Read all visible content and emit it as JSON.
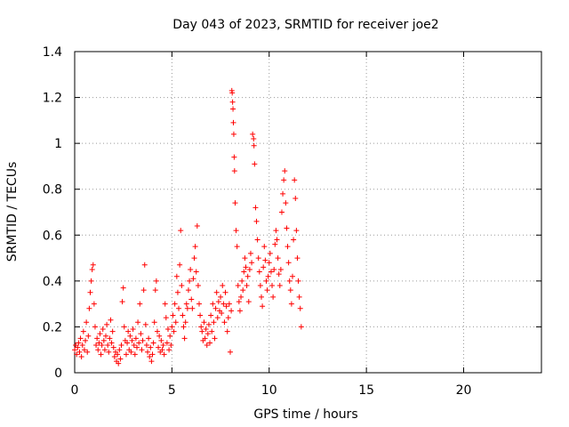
{
  "chart_data": {
    "type": "scatter",
    "title": "Day 043 of 2023, SRMTID for receiver joe2",
    "xlabel": "GPS time / hours",
    "ylabel": "SRMTID / TECUs",
    "xlim": [
      0,
      24
    ],
    "ylim": [
      0,
      1.4
    ],
    "xticks": [
      0,
      5,
      10,
      15,
      20
    ],
    "xtick_labels": [
      "0",
      "5",
      "10",
      "15",
      "20"
    ],
    "yticks": [
      0,
      0.2,
      0.4,
      0.6,
      0.8,
      1,
      1.2,
      1.4
    ],
    "ytick_labels": [
      "0",
      "0.2",
      "0.4",
      "0.6",
      "0.8",
      "1",
      "1.2",
      "1.4"
    ],
    "grid": true,
    "marker": "+",
    "color": "#ff0000",
    "series": [
      {
        "name": "SRMTID",
        "points": [
          [
            0.0,
            0.1
          ],
          [
            0.05,
            0.12
          ],
          [
            0.1,
            0.08
          ],
          [
            0.15,
            0.11
          ],
          [
            0.2,
            0.13
          ],
          [
            0.25,
            0.09
          ],
          [
            0.3,
            0.15
          ],
          [
            0.35,
            0.07
          ],
          [
            0.4,
            0.12
          ],
          [
            0.45,
            0.18
          ],
          [
            0.5,
            0.1
          ],
          [
            0.55,
            0.14
          ],
          [
            0.6,
            0.22
          ],
          [
            0.65,
            0.09
          ],
          [
            0.7,
            0.16
          ],
          [
            0.75,
            0.28
          ],
          [
            0.8,
            0.35
          ],
          [
            0.85,
            0.4
          ],
          [
            0.9,
            0.45
          ],
          [
            0.95,
            0.47
          ],
          [
            1.0,
            0.3
          ],
          [
            1.05,
            0.2
          ],
          [
            1.1,
            0.12
          ],
          [
            1.15,
            0.15
          ],
          [
            1.2,
            0.1
          ],
          [
            1.25,
            0.13
          ],
          [
            1.3,
            0.17
          ],
          [
            1.35,
            0.08
          ],
          [
            1.4,
            0.12
          ],
          [
            1.45,
            0.19
          ],
          [
            1.5,
            0.14
          ],
          [
            1.55,
            0.1
          ],
          [
            1.6,
            0.16
          ],
          [
            1.65,
            0.21
          ],
          [
            1.7,
            0.12
          ],
          [
            1.75,
            0.09
          ],
          [
            1.8,
            0.15
          ],
          [
            1.85,
            0.23
          ],
          [
            1.9,
            0.13
          ],
          [
            1.95,
            0.18
          ],
          [
            2.0,
            0.11
          ],
          [
            2.05,
            0.07
          ],
          [
            2.1,
            0.09
          ],
          [
            2.15,
            0.05
          ],
          [
            2.2,
            0.08
          ],
          [
            2.25,
            0.04
          ],
          [
            2.3,
            0.1
          ],
          [
            2.35,
            0.06
          ],
          [
            2.4,
            0.12
          ],
          [
            2.45,
            0.31
          ],
          [
            2.5,
            0.37
          ],
          [
            2.55,
            0.2
          ],
          [
            2.6,
            0.14
          ],
          [
            2.65,
            0.08
          ],
          [
            2.7,
            0.13
          ],
          [
            2.75,
            0.18
          ],
          [
            2.8,
            0.1
          ],
          [
            2.85,
            0.16
          ],
          [
            2.9,
            0.09
          ],
          [
            2.95,
            0.14
          ],
          [
            3.0,
            0.19
          ],
          [
            3.05,
            0.12
          ],
          [
            3.1,
            0.08
          ],
          [
            3.15,
            0.15
          ],
          [
            3.2,
            0.11
          ],
          [
            3.25,
            0.22
          ],
          [
            3.3,
            0.13
          ],
          [
            3.35,
            0.3
          ],
          [
            3.4,
            0.17
          ],
          [
            3.45,
            0.1
          ],
          [
            3.5,
            0.14
          ],
          [
            3.55,
            0.36
          ],
          [
            3.6,
            0.47
          ],
          [
            3.65,
            0.21
          ],
          [
            3.7,
            0.12
          ],
          [
            3.75,
            0.09
          ],
          [
            3.8,
            0.15
          ],
          [
            3.85,
            0.07
          ],
          [
            3.9,
            0.11
          ],
          [
            3.95,
            0.05
          ],
          [
            4.0,
            0.08
          ],
          [
            4.05,
            0.13
          ],
          [
            4.1,
            0.22
          ],
          [
            4.15,
            0.36
          ],
          [
            4.2,
            0.4
          ],
          [
            4.25,
            0.18
          ],
          [
            4.3,
            0.11
          ],
          [
            4.35,
            0.16
          ],
          [
            4.4,
            0.09
          ],
          [
            4.45,
            0.14
          ],
          [
            4.5,
            0.1
          ],
          [
            4.55,
            0.12
          ],
          [
            4.6,
            0.08
          ],
          [
            4.65,
            0.3
          ],
          [
            4.7,
            0.24
          ],
          [
            4.75,
            0.13
          ],
          [
            4.8,
            0.19
          ],
          [
            4.85,
            0.1
          ],
          [
            4.9,
            0.16
          ],
          [
            4.95,
            0.12
          ],
          [
            5.0,
            0.2
          ],
          [
            5.05,
            0.25
          ],
          [
            5.1,
            0.18
          ],
          [
            5.15,
            0.3
          ],
          [
            5.2,
            0.22
          ],
          [
            5.25,
            0.42
          ],
          [
            5.3,
            0.35
          ],
          [
            5.35,
            0.28
          ],
          [
            5.4,
            0.47
          ],
          [
            5.45,
            0.62
          ],
          [
            5.5,
            0.38
          ],
          [
            5.55,
            0.25
          ],
          [
            5.6,
            0.2
          ],
          [
            5.65,
            0.15
          ],
          [
            5.7,
            0.22
          ],
          [
            5.75,
            0.3
          ],
          [
            5.8,
            0.28
          ],
          [
            5.85,
            0.36
          ],
          [
            5.9,
            0.4
          ],
          [
            5.95,
            0.45
          ],
          [
            6.0,
            0.32
          ],
          [
            6.05,
            0.28
          ],
          [
            6.1,
            0.41
          ],
          [
            6.15,
            0.5
          ],
          [
            6.2,
            0.55
          ],
          [
            6.25,
            0.44
          ],
          [
            6.3,
            0.64
          ],
          [
            6.35,
            0.38
          ],
          [
            6.4,
            0.3
          ],
          [
            6.45,
            0.25
          ],
          [
            6.5,
            0.2
          ],
          [
            6.55,
            0.18
          ],
          [
            6.6,
            0.14
          ],
          [
            6.65,
            0.22
          ],
          [
            6.7,
            0.15
          ],
          [
            6.75,
            0.19
          ],
          [
            6.8,
            0.12
          ],
          [
            6.85,
            0.17
          ],
          [
            6.9,
            0.21
          ],
          [
            6.95,
            0.13
          ],
          [
            7.0,
            0.25
          ],
          [
            7.05,
            0.18
          ],
          [
            7.1,
            0.3
          ],
          [
            7.15,
            0.22
          ],
          [
            7.2,
            0.15
          ],
          [
            7.25,
            0.28
          ],
          [
            7.3,
            0.35
          ],
          [
            7.35,
            0.24
          ],
          [
            7.4,
            0.31
          ],
          [
            7.45,
            0.27
          ],
          [
            7.5,
            0.33
          ],
          [
            7.55,
            0.26
          ],
          [
            7.6,
            0.38
          ],
          [
            7.65,
            0.3
          ],
          [
            7.7,
            0.22
          ],
          [
            7.75,
            0.35
          ],
          [
            7.8,
            0.29
          ],
          [
            7.85,
            0.18
          ],
          [
            7.9,
            0.24
          ],
          [
            7.95,
            0.3
          ],
          [
            8.0,
            0.09
          ],
          [
            8.05,
            0.27
          ],
          [
            8.08,
            1.23
          ],
          [
            8.1,
            1.22
          ],
          [
            8.12,
            1.18
          ],
          [
            8.14,
            1.15
          ],
          [
            8.16,
            1.09
          ],
          [
            8.18,
            1.04
          ],
          [
            8.2,
            0.94
          ],
          [
            8.22,
            0.88
          ],
          [
            8.25,
            0.74
          ],
          [
            8.3,
            0.62
          ],
          [
            8.35,
            0.55
          ],
          [
            8.4,
            0.38
          ],
          [
            8.45,
            0.31
          ],
          [
            8.5,
            0.27
          ],
          [
            8.55,
            0.33
          ],
          [
            8.6,
            0.4
          ],
          [
            8.65,
            0.36
          ],
          [
            8.7,
            0.44
          ],
          [
            8.75,
            0.5
          ],
          [
            8.8,
            0.46
          ],
          [
            8.85,
            0.38
          ],
          [
            8.9,
            0.42
          ],
          [
            8.95,
            0.31
          ],
          [
            9.0,
            0.45
          ],
          [
            9.05,
            0.52
          ],
          [
            9.1,
            0.48
          ],
          [
            9.15,
            1.04
          ],
          [
            9.2,
            1.02
          ],
          [
            9.22,
            0.99
          ],
          [
            9.25,
            0.91
          ],
          [
            9.3,
            0.72
          ],
          [
            9.35,
            0.66
          ],
          [
            9.4,
            0.58
          ],
          [
            9.45,
            0.5
          ],
          [
            9.5,
            0.44
          ],
          [
            9.55,
            0.38
          ],
          [
            9.6,
            0.33
          ],
          [
            9.65,
            0.29
          ],
          [
            9.7,
            0.46
          ],
          [
            9.75,
            0.55
          ],
          [
            9.8,
            0.49
          ],
          [
            9.85,
            0.4
          ],
          [
            9.9,
            0.36
          ],
          [
            9.95,
            0.42
          ],
          [
            10.0,
            0.48
          ],
          [
            10.05,
            0.52
          ],
          [
            10.1,
            0.44
          ],
          [
            10.15,
            0.38
          ],
          [
            10.2,
            0.33
          ],
          [
            10.25,
            0.45
          ],
          [
            10.3,
            0.56
          ],
          [
            10.35,
            0.62
          ],
          [
            10.4,
            0.58
          ],
          [
            10.45,
            0.5
          ],
          [
            10.5,
            0.43
          ],
          [
            10.55,
            0.38
          ],
          [
            10.6,
            0.45
          ],
          [
            10.65,
            0.7
          ],
          [
            10.7,
            0.78
          ],
          [
            10.75,
            0.84
          ],
          [
            10.8,
            0.88
          ],
          [
            10.85,
            0.74
          ],
          [
            10.9,
            0.63
          ],
          [
            10.95,
            0.55
          ],
          [
            11.0,
            0.48
          ],
          [
            11.05,
            0.4
          ],
          [
            11.1,
            0.36
          ],
          [
            11.15,
            0.3
          ],
          [
            11.2,
            0.42
          ],
          [
            11.25,
            0.58
          ],
          [
            11.3,
            0.84
          ],
          [
            11.35,
            0.76
          ],
          [
            11.4,
            0.62
          ],
          [
            11.45,
            0.5
          ],
          [
            11.5,
            0.4
          ],
          [
            11.55,
            0.33
          ],
          [
            11.6,
            0.28
          ],
          [
            11.65,
            0.2
          ]
        ]
      }
    ]
  }
}
